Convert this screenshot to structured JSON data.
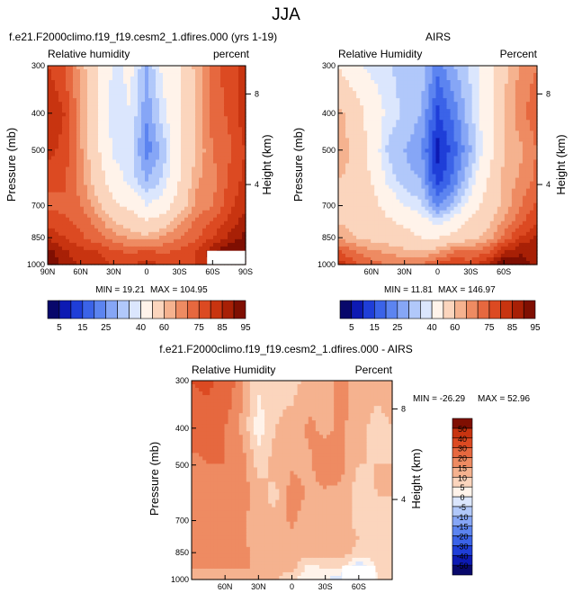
{
  "page_title": "JJA",
  "chart_data": [
    {
      "type": "heatmap",
      "id": "model",
      "title": "f.e21.F2000climo.f19_f19.cesm2_1.dfires.000 (yrs 1-19)",
      "left_label": "Relative humidity",
      "right_label": "percent",
      "ylabel": "Pressure (mb)",
      "y2label": "Height (km)",
      "yticks": [
        "300",
        "400",
        "500",
        "700",
        "850",
        "1000"
      ],
      "y_tick_values": [
        300,
        400,
        500,
        700,
        850,
        1000
      ],
      "ylim": [
        1000,
        300
      ],
      "y2ticks": [
        "8",
        "4"
      ],
      "y2_tick_pressures": [
        356,
        616
      ],
      "xticks": [
        "90N",
        "60N",
        "30N",
        "0",
        "30S",
        "60S",
        "90S"
      ],
      "x_tick_values": [
        90,
        60,
        30,
        0,
        -30,
        -60,
        -90
      ],
      "xlim": [
        90,
        -90
      ],
      "min_text": "MIN = 19.21",
      "max_text": "MAX = 104.95",
      "grid_lats": [
        90,
        75,
        60,
        45,
        30,
        15,
        0,
        -15,
        -30,
        -45,
        -60,
        -75,
        -90
      ],
      "grid_levels": [
        300,
        400,
        500,
        600,
        700,
        775,
        850,
        925,
        1000
      ],
      "values": [
        [
          80,
          75,
          63,
          52,
          38,
          42,
          30,
          42,
          50,
          62,
          72,
          78,
          82
        ],
        [
          85,
          80,
          66,
          52,
          36,
          40,
          26,
          38,
          48,
          62,
          72,
          76,
          84
        ],
        [
          82,
          78,
          66,
          52,
          38,
          38,
          22,
          32,
          48,
          60,
          70,
          74,
          80
        ],
        [
          76,
          76,
          68,
          56,
          44,
          38,
          30,
          36,
          50,
          64,
          68,
          76,
          82
        ],
        [
          74,
          74,
          70,
          62,
          52,
          48,
          40,
          44,
          56,
          66,
          70,
          78,
          84
        ],
        [
          78,
          76,
          74,
          68,
          60,
          56,
          52,
          56,
          64,
          72,
          76,
          82,
          88
        ],
        [
          84,
          80,
          76,
          72,
          68,
          64,
          62,
          66,
          70,
          74,
          80,
          86,
          92
        ],
        [
          92,
          86,
          82,
          80,
          76,
          74,
          76,
          74,
          76,
          80,
          88,
          96,
          96
        ],
        [
          96,
          88,
          84,
          82,
          80,
          80,
          82,
          80,
          78,
          80,
          86,
          96,
          96
        ]
      ],
      "missing_box": {
        "lat_from": -55,
        "lat_to": -90,
        "p_from": 920,
        "p_to": 1000
      },
      "colorbar": {
        "labels": [
          "5",
          "15",
          "25",
          "40",
          "60",
          "75",
          "85",
          "95"
        ],
        "levels": [
          5,
          10,
          15,
          20,
          25,
          30,
          35,
          40,
          50,
          60,
          65,
          70,
          75,
          80,
          85,
          90,
          95
        ]
      }
    },
    {
      "type": "heatmap",
      "id": "obs",
      "title": "AIRS",
      "left_label": "Relative Humidity",
      "right_label": "Percent",
      "ylabel": "Pressure (mb)",
      "y2label": "Height (km)",
      "yticks": [
        "300",
        "400",
        "500",
        "700",
        "850",
        "1000"
      ],
      "y_tick_values": [
        300,
        400,
        500,
        700,
        850,
        1000
      ],
      "ylim": [
        1000,
        300
      ],
      "y2ticks": [
        "8",
        "4"
      ],
      "y2_tick_pressures": [
        356,
        616
      ],
      "xticks": [
        "60N",
        "30N",
        "0",
        "30S",
        "60S"
      ],
      "x_tick_values": [
        60,
        30,
        0,
        -30,
        -60
      ],
      "xlim": [
        90,
        -90
      ],
      "min_text": "MIN = 11.81",
      "max_text": "MAX = 146.97",
      "grid_lats": [
        90,
        75,
        60,
        45,
        30,
        15,
        0,
        -15,
        -30,
        -45,
        -60,
        -75,
        -90
      ],
      "grid_levels": [
        300,
        400,
        500,
        600,
        700,
        775,
        850,
        925,
        1000
      ],
      "values": [
        [
          50,
          42,
          38,
          36,
          32,
          34,
          22,
          30,
          36,
          46,
          58,
          66,
          70
        ],
        [
          62,
          56,
          46,
          38,
          34,
          30,
          14,
          22,
          34,
          46,
          60,
          68,
          74
        ],
        [
          64,
          58,
          46,
          34,
          30,
          26,
          8,
          18,
          30,
          44,
          60,
          64,
          70
        ],
        [
          60,
          58,
          50,
          38,
          32,
          30,
          12,
          22,
          36,
          50,
          62,
          66,
          72
        ],
        [
          58,
          56,
          54,
          46,
          40,
          36,
          24,
          32,
          44,
          54,
          62,
          70,
          76
        ],
        [
          60,
          58,
          56,
          52,
          48,
          44,
          38,
          44,
          52,
          58,
          66,
          74,
          80
        ],
        [
          64,
          60,
          58,
          56,
          54,
          50,
          50,
          54,
          58,
          62,
          72,
          80,
          86
        ],
        [
          76,
          70,
          66,
          64,
          62,
          60,
          64,
          70,
          70,
          74,
          84,
          90,
          88
        ],
        [
          84,
          76,
          72,
          70,
          68,
          70,
          76,
          80,
          78,
          84,
          96,
          92,
          88
        ]
      ],
      "colorbar": {
        "labels": [
          "5",
          "15",
          "25",
          "40",
          "60",
          "75",
          "85",
          "95"
        ],
        "levels": [
          5,
          10,
          15,
          20,
          25,
          30,
          35,
          40,
          50,
          60,
          65,
          70,
          75,
          80,
          85,
          90,
          95
        ]
      }
    },
    {
      "type": "heatmap",
      "id": "diff",
      "title": "f.e21.F2000climo.f19_f19.cesm2_1.dfires.000 - AIRS",
      "left_label": "Relative Humidity",
      "right_label": "Percent",
      "ylabel": "Pressure (mb)",
      "y2label": "Height (km)",
      "yticks": [
        "300",
        "400",
        "500",
        "700",
        "850",
        "1000"
      ],
      "y_tick_values": [
        300,
        400,
        500,
        700,
        850,
        1000
      ],
      "ylim": [
        1000,
        300
      ],
      "y2ticks": [
        "8",
        "4"
      ],
      "y2_tick_pressures": [
        356,
        616
      ],
      "xticks": [
        "60N",
        "30N",
        "0",
        "30S",
        "60S"
      ],
      "x_tick_values": [
        60,
        30,
        0,
        -30,
        -60
      ],
      "xlim": [
        90,
        -90
      ],
      "min_text": "MIN = -26.29",
      "max_text": "MAX = 52.96",
      "grid_lats": [
        90,
        75,
        60,
        45,
        30,
        15,
        0,
        -15,
        -30,
        -45,
        -60,
        -75,
        -90
      ],
      "grid_levels": [
        300,
        400,
        500,
        600,
        700,
        775,
        850,
        925,
        1000
      ],
      "values": [
        [
          30,
          33,
          25,
          16,
          6,
          8,
          8,
          12,
          14,
          16,
          14,
          12,
          12
        ],
        [
          23,
          24,
          20,
          14,
          2,
          10,
          12,
          16,
          14,
          16,
          12,
          8,
          10
        ],
        [
          18,
          20,
          20,
          18,
          8,
          12,
          14,
          14,
          18,
          16,
          10,
          10,
          10
        ],
        [
          16,
          18,
          18,
          18,
          12,
          8,
          18,
          14,
          14,
          14,
          6,
          10,
          10
        ],
        [
          16,
          18,
          16,
          16,
          12,
          12,
          16,
          12,
          12,
          12,
          8,
          8,
          8
        ],
        [
          18,
          18,
          18,
          16,
          12,
          12,
          14,
          12,
          12,
          14,
          10,
          8,
          8
        ],
        [
          20,
          20,
          18,
          16,
          14,
          14,
          12,
          12,
          12,
          12,
          8,
          6,
          6
        ],
        [
          16,
          16,
          16,
          16,
          14,
          14,
          12,
          4,
          6,
          6,
          -4,
          6,
          8
        ],
        [
          12,
          12,
          12,
          12,
          12,
          10,
          6,
          0,
          0,
          -4,
          -18,
          4,
          8
        ]
      ],
      "missing_box": {
        "lat_from": -45,
        "lat_to": -75,
        "p_from": 920,
        "p_to": 1000
      },
      "colorbar": {
        "labels": [
          "50",
          "40",
          "30",
          "20",
          "15",
          "10",
          "5",
          "0",
          "-5",
          "-10",
          "-15",
          "-20",
          "-30",
          "-40",
          "-50"
        ],
        "levels": [
          -50,
          -40,
          -30,
          -20,
          -15,
          -10,
          -5,
          0,
          5,
          10,
          15,
          20,
          30,
          40,
          50
        ]
      }
    }
  ],
  "palettes": {
    "rh": [
      "#08086b",
      "#0d1ab3",
      "#1f3ed8",
      "#3b63e8",
      "#5c84f0",
      "#86a6f6",
      "#b1c8fa",
      "#dbe6fd",
      "#fff3ea",
      "#fbd5bd",
      "#f5b28f",
      "#ee8b62",
      "#e6683f",
      "#dc4a22",
      "#c83410",
      "#a82006",
      "#7f0f02"
    ],
    "diff": [
      "#08086b",
      "#0d1ab3",
      "#1f3ed8",
      "#3b63e8",
      "#5c84f0",
      "#86a6f6",
      "#b1c8fa",
      "#dbe6fd",
      "#fff3ea",
      "#fbd5bd",
      "#f5b28f",
      "#ee8b62",
      "#e6683f",
      "#dc4a22",
      "#c83410",
      "#7f0f02"
    ],
    "missing": "#ffffff"
  }
}
